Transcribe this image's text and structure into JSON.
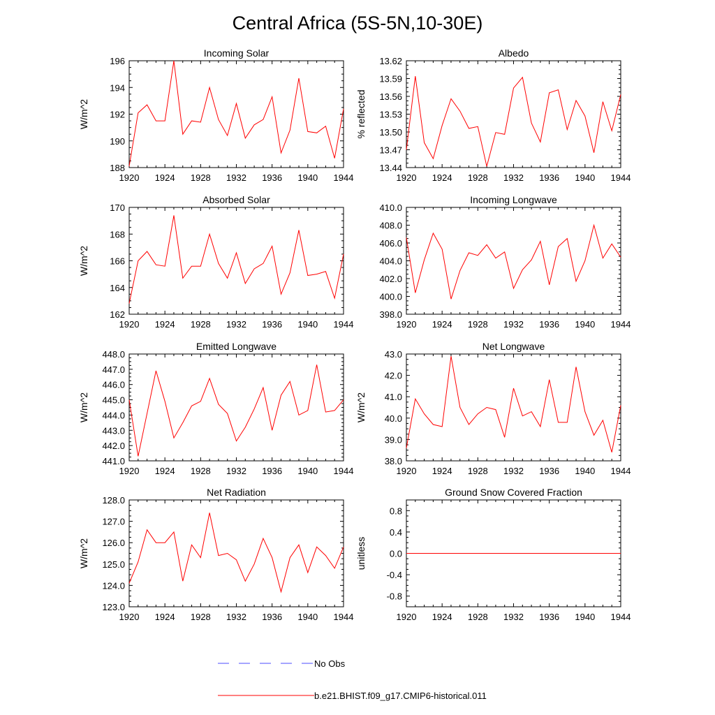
{
  "title": "Central Africa (5S-5N,10-30E)",
  "colors": {
    "model": "#ff0000",
    "obs": "#4b4bff",
    "axis": "#000000"
  },
  "legend": {
    "obs_label": "No Obs",
    "model_label": "b.e21.BHIST.f09_g17.CMIP6-historical.011"
  },
  "chart_data": [
    {
      "type": "line",
      "title": "Incoming Solar",
      "ylabel": "W/m^2",
      "xlim": [
        1920,
        1944
      ],
      "ylim": [
        188,
        196
      ],
      "xticks": [
        "1920",
        "1924",
        "1928",
        "1932",
        "1936",
        "1940",
        "1944"
      ],
      "yticks": [
        "188",
        "190",
        "192",
        "194",
        "196"
      ],
      "x": [
        1920,
        1921,
        1922,
        1923,
        1924,
        1925,
        1926,
        1927,
        1928,
        1929,
        1930,
        1931,
        1932,
        1933,
        1934,
        1935,
        1936,
        1937,
        1938,
        1939,
        1940,
        1941,
        1942,
        1943,
        1944
      ],
      "series": [
        {
          "values": [
            188.1,
            192.1,
            192.7,
            191.5,
            191.5,
            196.0,
            190.5,
            191.5,
            191.4,
            194.0,
            191.6,
            190.4,
            192.8,
            190.2,
            191.2,
            191.6,
            193.3,
            189.1,
            190.8,
            194.7,
            190.7,
            190.6,
            191.1,
            188.7,
            192.4
          ]
        }
      ]
    },
    {
      "type": "line",
      "title": "Albedo",
      "ylabel": "% reflected",
      "xlim": [
        1920,
        1944
      ],
      "ylim": [
        13.44,
        13.62
      ],
      "xticks": [
        "1920",
        "1924",
        "1928",
        "1932",
        "1936",
        "1940",
        "1944"
      ],
      "yticks": [
        "13.44",
        "13.47",
        "13.50",
        "13.53",
        "13.56",
        "13.59",
        "13.62"
      ],
      "x": [
        1920,
        1921,
        1922,
        1923,
        1924,
        1925,
        1926,
        1927,
        1928,
        1929,
        1930,
        1931,
        1932,
        1933,
        1934,
        1935,
        1936,
        1937,
        1938,
        1939,
        1940,
        1941,
        1942,
        1943,
        1944
      ],
      "series": [
        {
          "values": [
            13.47,
            13.594,
            13.482,
            13.455,
            13.511,
            13.556,
            13.535,
            13.506,
            13.509,
            13.442,
            13.499,
            13.496,
            13.574,
            13.592,
            13.515,
            13.483,
            13.566,
            13.571,
            13.504,
            13.553,
            13.527,
            13.465,
            13.551,
            13.502,
            13.563
          ]
        }
      ]
    },
    {
      "type": "line",
      "title": "Absorbed Solar",
      "ylabel": "W/m^2",
      "xlim": [
        1920,
        1944
      ],
      "ylim": [
        162,
        170
      ],
      "xticks": [
        "1920",
        "1924",
        "1928",
        "1932",
        "1936",
        "1940",
        "1944"
      ],
      "yticks": [
        "162",
        "164",
        "166",
        "168",
        "170"
      ],
      "x": [
        1920,
        1921,
        1922,
        1923,
        1924,
        1925,
        1926,
        1927,
        1928,
        1929,
        1930,
        1931,
        1932,
        1933,
        1934,
        1935,
        1936,
        1937,
        1938,
        1939,
        1940,
        1941,
        1942,
        1943,
        1944
      ],
      "series": [
        {
          "values": [
            162.8,
            166.0,
            166.7,
            165.7,
            165.6,
            169.4,
            164.7,
            165.6,
            165.6,
            168.0,
            165.8,
            164.7,
            166.6,
            164.3,
            165.4,
            165.8,
            167.1,
            163.5,
            165.1,
            168.3,
            164.9,
            165.0,
            165.2,
            163.2,
            166.5
          ]
        }
      ]
    },
    {
      "type": "line",
      "title": "Incoming Longwave",
      "ylabel": "",
      "xlim": [
        1920,
        1944
      ],
      "ylim": [
        398,
        410
      ],
      "xticks": [
        "1920",
        "1924",
        "1928",
        "1932",
        "1936",
        "1940",
        "1944"
      ],
      "yticks": [
        "398.0",
        "400.0",
        "402.0",
        "404.0",
        "406.0",
        "408.0",
        "410.0"
      ],
      "x": [
        1920,
        1921,
        1922,
        1923,
        1924,
        1925,
        1926,
        1927,
        1928,
        1929,
        1930,
        1931,
        1932,
        1933,
        1934,
        1935,
        1936,
        1937,
        1938,
        1939,
        1940,
        1941,
        1942,
        1943,
        1944
      ],
      "series": [
        {
          "values": [
            406.6,
            400.4,
            404.1,
            407.1,
            405.3,
            399.7,
            402.9,
            404.9,
            404.6,
            405.8,
            404.3,
            405.0,
            400.9,
            403.0,
            404.1,
            406.2,
            401.3,
            405.6,
            406.5,
            401.7,
            404.0,
            408.0,
            404.3,
            405.9,
            404.4
          ]
        }
      ]
    },
    {
      "type": "line",
      "title": "Emitted Longwave",
      "ylabel": "W/m^2",
      "xlim": [
        1920,
        1944
      ],
      "ylim": [
        441,
        448
      ],
      "xticks": [
        "1920",
        "1924",
        "1928",
        "1932",
        "1936",
        "1940",
        "1944"
      ],
      "yticks": [
        "441.0",
        "442.0",
        "443.0",
        "444.0",
        "445.0",
        "446.0",
        "447.0",
        "448.0"
      ],
      "x": [
        1920,
        1921,
        1922,
        1923,
        1924,
        1925,
        1926,
        1927,
        1928,
        1929,
        1930,
        1931,
        1932,
        1933,
        1934,
        1935,
        1936,
        1937,
        1938,
        1939,
        1940,
        1941,
        1942,
        1943,
        1944
      ],
      "series": [
        {
          "values": [
            445.0,
            441.3,
            444.1,
            446.9,
            444.9,
            442.5,
            443.5,
            444.6,
            444.9,
            446.4,
            444.7,
            444.1,
            442.3,
            443.2,
            444.4,
            445.8,
            443.0,
            445.3,
            446.2,
            444.0,
            444.3,
            447.3,
            444.2,
            444.3,
            445.0
          ]
        }
      ]
    },
    {
      "type": "line",
      "title": "Net Longwave",
      "ylabel": "W/m^2",
      "xlim": [
        1920,
        1944
      ],
      "ylim": [
        38,
        43
      ],
      "xticks": [
        "1920",
        "1924",
        "1928",
        "1932",
        "1936",
        "1940",
        "1944"
      ],
      "yticks": [
        "38.0",
        "39.0",
        "40.0",
        "41.0",
        "42.0",
        "43.0"
      ],
      "x": [
        1920,
        1921,
        1922,
        1923,
        1924,
        1925,
        1926,
        1927,
        1928,
        1929,
        1930,
        1931,
        1932,
        1933,
        1934,
        1935,
        1936,
        1937,
        1938,
        1939,
        1940,
        1941,
        1942,
        1943,
        1944
      ],
      "series": [
        {
          "values": [
            38.6,
            40.9,
            40.2,
            39.7,
            39.6,
            42.9,
            40.5,
            39.7,
            40.2,
            40.5,
            40.4,
            39.1,
            41.4,
            40.1,
            40.3,
            39.6,
            41.8,
            39.8,
            39.8,
            42.4,
            40.3,
            39.2,
            39.9,
            38.4,
            40.6
          ]
        }
      ]
    },
    {
      "type": "line",
      "title": "Net Radiation",
      "ylabel": "W/m^2",
      "xlim": [
        1920,
        1944
      ],
      "ylim": [
        123,
        128
      ],
      "xticks": [
        "1920",
        "1924",
        "1928",
        "1932",
        "1936",
        "1940",
        "1944"
      ],
      "yticks": [
        "123.0",
        "124.0",
        "125.0",
        "126.0",
        "127.0",
        "128.0"
      ],
      "x": [
        1920,
        1921,
        1922,
        1923,
        1924,
        1925,
        1926,
        1927,
        1928,
        1929,
        1930,
        1931,
        1932,
        1933,
        1934,
        1935,
        1936,
        1937,
        1938,
        1939,
        1940,
        1941,
        1942,
        1943,
        1944
      ],
      "series": [
        {
          "values": [
            124.1,
            125.1,
            126.6,
            126.0,
            126.0,
            126.5,
            124.2,
            125.9,
            125.3,
            127.4,
            125.4,
            125.5,
            125.2,
            124.2,
            125.0,
            126.2,
            125.3,
            123.7,
            125.3,
            125.9,
            124.6,
            125.8,
            125.4,
            124.8,
            125.8
          ]
        }
      ]
    },
    {
      "type": "line",
      "title": "Ground Snow Covered Fraction",
      "ylabel": "unitless",
      "xlim": [
        1920,
        1944
      ],
      "ylim": [
        -1.0,
        1.0
      ],
      "xticks": [
        "1920",
        "1924",
        "1928",
        "1932",
        "1936",
        "1940",
        "1944"
      ],
      "yticks": [
        "-0.8",
        "-0.4",
        "0.0",
        "0.4",
        "0.8"
      ],
      "x": [
        1920,
        1944
      ],
      "series": [
        {
          "values": [
            0.0,
            0.0
          ]
        }
      ]
    }
  ]
}
